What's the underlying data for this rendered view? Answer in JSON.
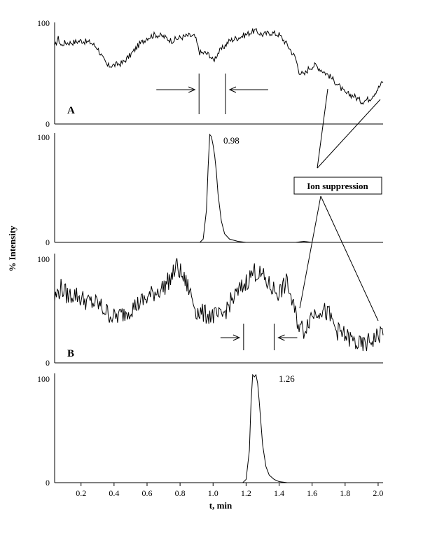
{
  "chart_data": {
    "type": "line",
    "xlabel": "t, min",
    "ylabel": "% Intensity",
    "xlim": [
      0.04,
      2.03
    ],
    "x_ticks": [
      "0.2",
      "0.4",
      "0.6",
      "0.8",
      "1.0",
      "1.2",
      "1.4",
      "1.6",
      "1.8",
      "2.0"
    ],
    "panels": [
      {
        "label": "A",
        "ylim": [
          0,
          100
        ],
        "y_ticks": [
          "0",
          "100"
        ],
        "series": [
          {
            "x": [
              0.04,
              0.06,
              0.08,
              0.1,
              0.14,
              0.2,
              0.26,
              0.3,
              0.33,
              0.36,
              0.4,
              0.45,
              0.5,
              0.55,
              0.6,
              0.65,
              0.7,
              0.75,
              0.8,
              0.85,
              0.89,
              0.92,
              0.95,
              0.98,
              1.0,
              1.03,
              1.06,
              1.1,
              1.15,
              1.2,
              1.25,
              1.3,
              1.35,
              1.4,
              1.45,
              1.48,
              1.5,
              1.52,
              1.55,
              1.58,
              1.62,
              1.65,
              1.7,
              1.75,
              1.8,
              1.85,
              1.9,
              1.95,
              2.0,
              2.03
            ],
            "y": [
              75,
              85,
              77,
              80,
              80,
              82,
              80,
              75,
              65,
              57,
              58,
              60,
              68,
              78,
              85,
              88,
              86,
              82,
              85,
              87,
              86,
              70,
              70,
              68,
              62,
              70,
              75,
              82,
              85,
              88,
              92,
              88,
              90,
              88,
              78,
              70,
              65,
              52,
              48,
              55,
              58,
              54,
              48,
              40,
              30,
              28,
              22,
              25,
              35,
              42
            ]
          }
        ],
        "annotations": [
          {
            "type": "bracket",
            "x_left": 0.915,
            "x_right": 1.075
          }
        ]
      },
      {
        "ylim": [
          0,
          100
        ],
        "y_ticks": [
          "0",
          "100"
        ],
        "peak_label": "0.98",
        "series": [
          {
            "x": [
              0.04,
              0.92,
              0.94,
              0.96,
              0.97,
              0.98,
              0.99,
              1.0,
              1.01,
              1.02,
              1.03,
              1.05,
              1.07,
              1.1,
              1.15,
              1.2,
              1.5,
              1.55,
              1.6,
              2.03
            ],
            "y": [
              0,
              0,
              3,
              30,
              70,
              100,
              98,
              90,
              80,
              65,
              45,
              20,
              8,
              3,
              1,
              0,
              0,
              1,
              0,
              0
            ]
          }
        ]
      },
      {
        "label": "B",
        "ylim": [
          0,
          100
        ],
        "y_ticks": [
          "0",
          "100"
        ],
        "series": [
          {
            "x": [
              0.04,
              0.08,
              0.12,
              0.16,
              0.2,
              0.25,
              0.3,
              0.35,
              0.4,
              0.45,
              0.5,
              0.55,
              0.6,
              0.65,
              0.7,
              0.75,
              0.78,
              0.8,
              0.85,
              0.9,
              0.95,
              1.0,
              1.05,
              1.1,
              1.15,
              1.2,
              1.25,
              1.3,
              1.35,
              1.4,
              1.45,
              1.48,
              1.5,
              1.52,
              1.55,
              1.58,
              1.6,
              1.65,
              1.7,
              1.75,
              1.8,
              1.85,
              1.9,
              1.95,
              2.0,
              2.03
            ],
            "y": [
              60,
              70,
              62,
              64,
              60,
              56,
              55,
              48,
              42,
              45,
              50,
              55,
              60,
              66,
              70,
              80,
              90,
              84,
              70,
              48,
              45,
              44,
              42,
              55,
              65,
              75,
              85,
              80,
              70,
              65,
              75,
              55,
              45,
              35,
              30,
              40,
              45,
              50,
              45,
              30,
              25,
              20,
              15,
              20,
              25,
              30
            ]
          }
        ],
        "annotations": [
          {
            "type": "bracket",
            "x_left": 1.185,
            "x_right": 1.37
          }
        ]
      },
      {
        "ylim": [
          0,
          100
        ],
        "y_ticks": [
          "0",
          "100"
        ],
        "peak_label": "1.26",
        "series": [
          {
            "x": [
              0.04,
              1.18,
              1.2,
              1.22,
              1.23,
              1.24,
              1.25,
              1.26,
              1.27,
              1.28,
              1.29,
              1.3,
              1.32,
              1.34,
              1.37,
              1.4,
              1.45,
              2.03
            ],
            "y": [
              0,
              0,
              3,
              30,
              75,
              100,
              98,
              100,
              92,
              75,
              55,
              35,
              15,
              7,
              3,
              1,
              0,
              0
            ]
          }
        ]
      }
    ],
    "callout": {
      "text": "Ion suppression"
    }
  }
}
